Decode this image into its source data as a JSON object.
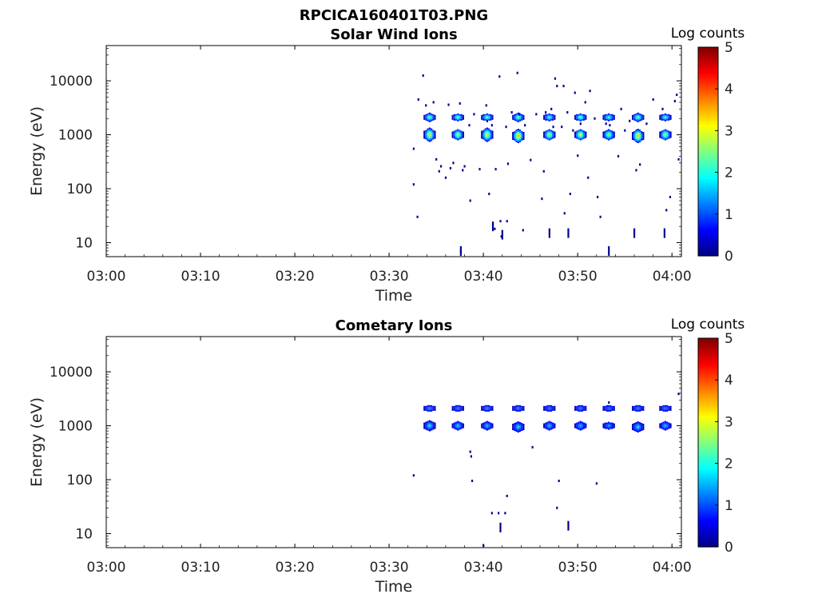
{
  "figure_title": "RPCICA160401T03.PNG",
  "chart_data": [
    {
      "type": "heatmap",
      "title": "Solar Wind Ions",
      "xlabel": "Time",
      "ylabel": "Energy (eV)",
      "x_ticks": [
        "03:00",
        "03:10",
        "03:20",
        "03:30",
        "03:40",
        "03:50",
        "04:00"
      ],
      "x_range": [
        "03:00",
        "04:01"
      ],
      "y_scale": "log",
      "y_ticks": [
        "10",
        "100",
        "1000",
        "10000"
      ],
      "y_range": [
        5.5,
        45000
      ],
      "colorbar": {
        "label": "Log counts",
        "ticks": [
          "0",
          "1",
          "2",
          "3",
          "4",
          "5"
        ],
        "range": [
          0,
          5
        ],
        "colormap": "jet"
      },
      "blobs": [
        {
          "t": "03:34.3",
          "e": 1000,
          "v": 3.0,
          "w": 1.0
        },
        {
          "t": "03:34.3",
          "e": 2100,
          "v": 2.2,
          "w": 0.6
        },
        {
          "t": "03:37.3",
          "e": 1000,
          "v": 2.6,
          "w": 0.8
        },
        {
          "t": "03:37.3",
          "e": 2100,
          "v": 2.2,
          "w": 0.5
        },
        {
          "t": "03:40.4",
          "e": 1000,
          "v": 3.0,
          "w": 1.0
        },
        {
          "t": "03:40.4",
          "e": 2100,
          "v": 2.2,
          "w": 0.5
        },
        {
          "t": "03:43.7",
          "e": 950,
          "v": 3.3,
          "w": 1.0
        },
        {
          "t": "03:43.7",
          "e": 2100,
          "v": 2.2,
          "w": 0.6
        },
        {
          "t": "03:47.0",
          "e": 1000,
          "v": 2.7,
          "w": 0.8
        },
        {
          "t": "03:47.0",
          "e": 2100,
          "v": 2.0,
          "w": 0.5
        },
        {
          "t": "03:50.3",
          "e": 1000,
          "v": 2.8,
          "w": 0.8
        },
        {
          "t": "03:50.3",
          "e": 2100,
          "v": 2.2,
          "w": 0.5
        },
        {
          "t": "03:53.3",
          "e": 1000,
          "v": 2.4,
          "w": 0.8
        },
        {
          "t": "03:53.3",
          "e": 2100,
          "v": 2.0,
          "w": 0.5
        },
        {
          "t": "03:56.4",
          "e": 950,
          "v": 3.2,
          "w": 1.0
        },
        {
          "t": "03:56.4",
          "e": 2100,
          "v": 2.2,
          "w": 0.6
        },
        {
          "t": "03:59.3",
          "e": 1000,
          "v": 2.6,
          "w": 0.8
        },
        {
          "t": "03:59.3",
          "e": 2100,
          "v": 2.0,
          "w": 0.5
        }
      ],
      "dots": [
        [
          "03:32.6",
          550
        ],
        [
          "03:32.6",
          120
        ],
        [
          "03:33.1",
          4500
        ],
        [
          "03:33.6",
          12500
        ],
        [
          "03:33.0",
          30
        ],
        [
          "03:33.9",
          3500
        ],
        [
          "03:34.7",
          4000
        ],
        [
          "03:35.0",
          350
        ],
        [
          "03:35.3",
          210
        ],
        [
          "03:35.5",
          260
        ],
        [
          "03:36.0",
          160
        ],
        [
          "03:36.3",
          3600
        ],
        [
          "03:36.5",
          240
        ],
        [
          "03:36.8",
          300
        ],
        [
          "03:37.5",
          3800
        ],
        [
          "03:37.6",
          7
        ],
        [
          "03:37.8",
          220
        ],
        [
          "03:38.0",
          260
        ],
        [
          "03:38.5",
          1500
        ],
        [
          "03:38.6",
          60
        ],
        [
          "03:39.0",
          2400
        ],
        [
          "03:39.6",
          230
        ],
        [
          "03:40.3",
          3500
        ],
        [
          "03:40.4",
          1800
        ],
        [
          "03:40.6",
          80
        ],
        [
          "03:40.9",
          1500
        ],
        [
          "03:41.0",
          22
        ],
        [
          "03:41.2",
          18
        ],
        [
          "03:41.3",
          230
        ],
        [
          "03:41.7",
          12000
        ],
        [
          "03:41.8",
          25
        ],
        [
          "03:41.9",
          13
        ],
        [
          "03:42.4",
          1400
        ],
        [
          "03:42.5",
          25
        ],
        [
          "03:42.6",
          290
        ],
        [
          "03:43.0",
          2600
        ],
        [
          "03:43.6",
          14000
        ],
        [
          "03:43.8",
          2400
        ],
        [
          "03:44.2",
          17
        ],
        [
          "03:44.4",
          1500
        ],
        [
          "03:45.0",
          340
        ],
        [
          "03:45.6",
          2400
        ],
        [
          "03:46.2",
          65
        ],
        [
          "03:46.4",
          210
        ],
        [
          "03:46.6",
          2600
        ],
        [
          "03:47.2",
          3000
        ],
        [
          "03:47.4",
          1400
        ],
        [
          "03:47.6",
          11000
        ],
        [
          "03:47.8",
          8000
        ],
        [
          "03:48.3",
          1400
        ],
        [
          "03:48.5",
          8000
        ],
        [
          "03:48.6",
          35
        ],
        [
          "03:48.9",
          2600
        ],
        [
          "03:49.2",
          80
        ],
        [
          "03:49.5",
          1200
        ],
        [
          "03:49.7",
          6000
        ],
        [
          "03:50.0",
          410
        ],
        [
          "03:50.3",
          1600
        ],
        [
          "03:50.8",
          4000
        ],
        [
          "03:51.1",
          160
        ],
        [
          "03:51.3",
          6500
        ],
        [
          "03:51.8",
          2000
        ],
        [
          "03:52.1",
          70
        ],
        [
          "03:52.4",
          30
        ],
        [
          "03:53.0",
          1600
        ],
        [
          "03:53.4",
          1500
        ],
        [
          "03:54.3",
          400
        ],
        [
          "03:54.6",
          3000
        ],
        [
          "03:55.0",
          1200
        ],
        [
          "03:55.5",
          1800
        ],
        [
          "03:56.2",
          220
        ],
        [
          "03:56.6",
          280
        ],
        [
          "03:57.3",
          1600
        ],
        [
          "03:58.0",
          4500
        ],
        [
          "03:59.0",
          3000
        ],
        [
          "03:59.4",
          40
        ],
        [
          "03:59.8",
          70
        ],
        [
          "04:00.3",
          4200
        ],
        [
          "04:00.5",
          5500
        ],
        [
          "04:00.7",
          350
        ]
      ],
      "streaks": [
        [
          "03:37.6",
          7
        ],
        [
          "03:42.0",
          14
        ],
        [
          "03:47.0",
          15
        ],
        [
          "03:49.0",
          15
        ],
        [
          "03:53.3",
          7
        ],
        [
          "03:56.0",
          15
        ],
        [
          "03:59.2",
          15
        ],
        [
          "03:41.0",
          20
        ]
      ]
    },
    {
      "type": "heatmap",
      "title": "Cometary Ions",
      "xlabel": "Time",
      "ylabel": "Energy (eV)",
      "x_ticks": [
        "03:00",
        "03:10",
        "03:20",
        "03:30",
        "03:40",
        "03:50",
        "04:00"
      ],
      "x_range": [
        "03:00",
        "04:01"
      ],
      "y_scale": "log",
      "y_ticks": [
        "10",
        "100",
        "1000",
        "10000"
      ],
      "y_range": [
        5.5,
        45000
      ],
      "colorbar": {
        "label": "Log counts",
        "ticks": [
          "0",
          "1",
          "2",
          "3",
          "4",
          "5"
        ],
        "range": [
          0,
          5
        ],
        "colormap": "jet"
      },
      "blobs": [
        {
          "t": "03:34.3",
          "e": 1000,
          "v": 1.6,
          "w": 0.7
        },
        {
          "t": "03:34.3",
          "e": 2100,
          "v": 1.2,
          "w": 0.4
        },
        {
          "t": "03:37.3",
          "e": 1000,
          "v": 1.5,
          "w": 0.6
        },
        {
          "t": "03:37.3",
          "e": 2100,
          "v": 1.1,
          "w": 0.4
        },
        {
          "t": "03:40.4",
          "e": 1000,
          "v": 1.4,
          "w": 0.6
        },
        {
          "t": "03:40.4",
          "e": 2100,
          "v": 1.2,
          "w": 0.4
        },
        {
          "t": "03:43.7",
          "e": 950,
          "v": 1.5,
          "w": 0.7
        },
        {
          "t": "03:43.7",
          "e": 2100,
          "v": 1.1,
          "w": 0.4
        },
        {
          "t": "03:47.0",
          "e": 1000,
          "v": 1.4,
          "w": 0.6
        },
        {
          "t": "03:47.0",
          "e": 2100,
          "v": 1.0,
          "w": 0.4
        },
        {
          "t": "03:50.3",
          "e": 1000,
          "v": 1.3,
          "w": 0.6
        },
        {
          "t": "03:50.3",
          "e": 2100,
          "v": 1.1,
          "w": 0.4
        },
        {
          "t": "03:53.3",
          "e": 1000,
          "v": 1.2,
          "w": 0.5
        },
        {
          "t": "03:53.3",
          "e": 2100,
          "v": 1.0,
          "w": 0.4
        },
        {
          "t": "03:56.4",
          "e": 950,
          "v": 1.5,
          "w": 0.7
        },
        {
          "t": "03:56.4",
          "e": 2100,
          "v": 1.1,
          "w": 0.4
        },
        {
          "t": "03:59.3",
          "e": 1000,
          "v": 1.4,
          "w": 0.6
        },
        {
          "t": "03:59.3",
          "e": 2100,
          "v": 1.1,
          "w": 0.4
        }
      ],
      "dots": [
        [
          "03:32.6",
          120
        ],
        [
          "03:38.6",
          330
        ],
        [
          "03:38.7",
          270
        ],
        [
          "03:38.8",
          95
        ],
        [
          "03:40.0",
          6
        ],
        [
          "03:40.9",
          24
        ],
        [
          "03:41.6",
          24
        ],
        [
          "03:42.3",
          24
        ],
        [
          "03:42.5",
          50
        ],
        [
          "03:45.2",
          400
        ],
        [
          "03:47.8",
          30
        ],
        [
          "03:48.0",
          95
        ],
        [
          "03:52.0",
          85
        ],
        [
          "03:53.3",
          2700
        ],
        [
          "04:00.7",
          3900
        ]
      ],
      "streaks": [
        [
          "03:41.8",
          13
        ],
        [
          "03:49.0",
          14
        ]
      ]
    }
  ]
}
